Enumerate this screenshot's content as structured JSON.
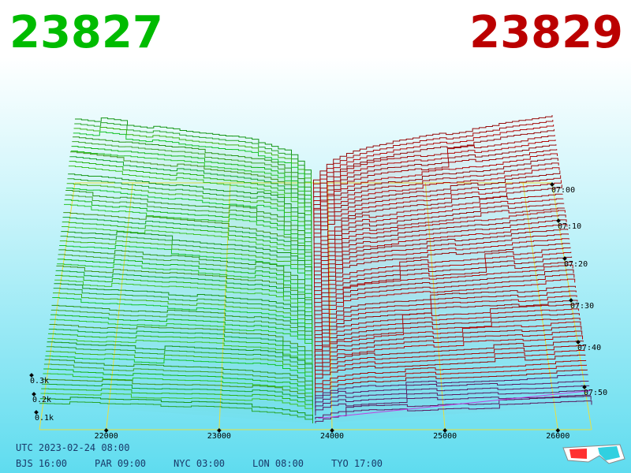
{
  "header": {
    "bid": "23827",
    "ask": "23829"
  },
  "axis": {
    "price_labels": [
      "22000",
      "23000",
      "24000",
      "25000",
      "26000"
    ],
    "depth_labels": [
      "0.3k",
      "0.2k",
      "0.1k"
    ],
    "time_labels": [
      "07:00",
      "07:10",
      "07:20",
      "07:30",
      "07:40",
      "07:50"
    ]
  },
  "footer": {
    "utc": "UTC 2023-02-24 08:00",
    "zones": [
      "BJS 16:00",
      "PAR 09:00",
      "NYC 03:00",
      "LON 08:00",
      "TYO 17:00"
    ]
  }
}
